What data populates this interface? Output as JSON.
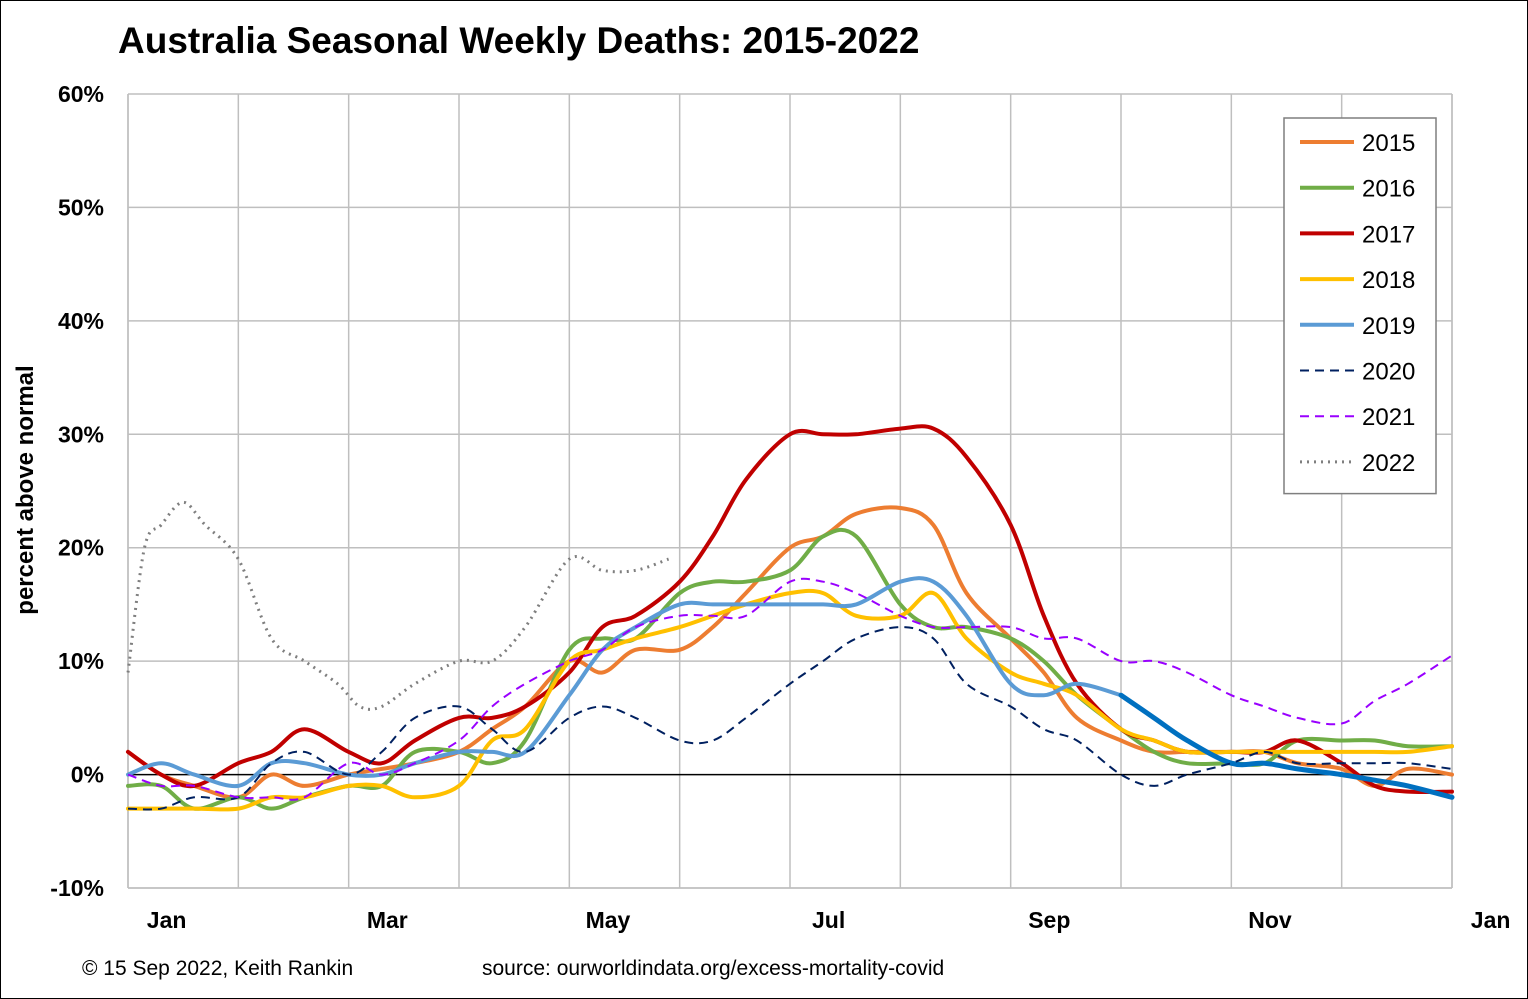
{
  "footer": {
    "copyright": "© 15 Sep 2022, Keith Rankin",
    "source": "source: ourworldindata.org/excess-mortality-covid"
  },
  "chart_data": {
    "type": "line",
    "title": "Australia Seasonal Weekly Deaths: 2015-2022",
    "xlabel": "",
    "ylabel": "percent above normal",
    "x_unit": "month",
    "xlim": [
      1,
      13
    ],
    "ylim": [
      -10,
      60
    ],
    "yticks": [
      -10,
      0,
      10,
      20,
      30,
      40,
      50,
      60
    ],
    "ytick_labels": [
      "-10%",
      "0%",
      "10%",
      "20%",
      "30%",
      "40%",
      "50%",
      "60%"
    ],
    "xtick_labels": [
      {
        "x": 1.35,
        "label": "Jan"
      },
      {
        "x": 3.35,
        "label": "Mar"
      },
      {
        "x": 5.35,
        "label": "May"
      },
      {
        "x": 7.35,
        "label": "Jul"
      },
      {
        "x": 9.35,
        "label": "Sep"
      },
      {
        "x": 11.35,
        "label": "Nov"
      },
      {
        "x": 13.35,
        "label": "Jan"
      }
    ],
    "grid": true,
    "legend_position": "top-right",
    "series": [
      {
        "name": "2015",
        "color": "#ED7D31",
        "dash": "solid",
        "width": 4,
        "x": [
          1.0,
          1.3,
          1.6,
          2.0,
          2.3,
          2.6,
          3.0,
          3.3,
          3.6,
          4.0,
          4.3,
          4.6,
          5.0,
          5.3,
          5.6,
          6.0,
          6.3,
          6.6,
          7.0,
          7.3,
          7.6,
          8.0,
          8.3,
          8.6,
          9.0,
          9.3,
          9.6,
          10.0,
          10.3,
          10.6,
          11.0,
          11.3,
          11.6,
          12.0,
          12.3,
          12.6,
          13.0
        ],
        "y": [
          2,
          0,
          -1,
          -2,
          0,
          -1,
          0,
          0.5,
          1,
          2,
          4,
          6,
          10,
          9,
          11,
          11,
          13,
          16,
          20,
          21,
          23,
          23.5,
          22,
          16,
          12,
          9,
          5,
          3,
          2,
          2,
          2,
          2,
          1,
          0.5,
          -1,
          0.5,
          0
        ]
      },
      {
        "name": "2016",
        "color": "#70AD47",
        "dash": "solid",
        "width": 4,
        "x": [
          1.0,
          1.3,
          1.6,
          2.0,
          2.3,
          2.6,
          3.0,
          3.3,
          3.6,
          4.0,
          4.3,
          4.6,
          5.0,
          5.3,
          5.6,
          6.0,
          6.3,
          6.6,
          7.0,
          7.3,
          7.6,
          8.0,
          8.3,
          8.6,
          9.0,
          9.3,
          9.6,
          10.0,
          10.3,
          10.6,
          11.0,
          11.3,
          11.6,
          12.0,
          12.3,
          12.6,
          13.0
        ],
        "y": [
          -1,
          -1,
          -3,
          -2,
          -3,
          -2,
          -1,
          -1,
          2,
          2,
          1,
          3,
          11,
          12,
          12,
          16,
          17,
          17,
          18,
          21,
          21,
          15,
          13,
          13,
          12,
          10,
          7,
          4,
          2,
          1,
          1,
          1,
          3,
          3,
          3,
          2.5,
          2.5
        ]
      },
      {
        "name": "2017",
        "color": "#C00000",
        "dash": "solid",
        "width": 4,
        "x": [
          1.0,
          1.3,
          1.6,
          2.0,
          2.3,
          2.6,
          3.0,
          3.3,
          3.6,
          4.0,
          4.3,
          4.6,
          5.0,
          5.3,
          5.6,
          6.0,
          6.3,
          6.6,
          7.0,
          7.3,
          7.6,
          8.0,
          8.3,
          8.6,
          9.0,
          9.3,
          9.6,
          10.0,
          10.3,
          10.6,
          11.0,
          11.3,
          11.6,
          12.0,
          12.3,
          12.6,
          13.0
        ],
        "y": [
          2,
          0,
          -1,
          1,
          2,
          4,
          2,
          1,
          3,
          5,
          5,
          6,
          9,
          13,
          14,
          17,
          21,
          26,
          30,
          30,
          30,
          30.5,
          30.5,
          28,
          22,
          14,
          8,
          4,
          3,
          2,
          2,
          2,
          3,
          1,
          -1,
          -1.5,
          -1.5
        ]
      },
      {
        "name": "2018",
        "color": "#FFC000",
        "dash": "solid",
        "width": 4,
        "x": [
          1.0,
          1.3,
          1.6,
          2.0,
          2.3,
          2.6,
          3.0,
          3.3,
          3.6,
          4.0,
          4.3,
          4.6,
          5.0,
          5.3,
          5.6,
          6.0,
          6.3,
          6.6,
          7.0,
          7.3,
          7.6,
          8.0,
          8.3,
          8.6,
          9.0,
          9.3,
          9.6,
          10.0,
          10.3,
          10.6,
          11.0,
          11.3,
          11.6,
          12.0,
          12.3,
          12.6,
          13.0
        ],
        "y": [
          -3,
          -3,
          -3,
          -3,
          -2,
          -2,
          -1,
          -1,
          -2,
          -1,
          3,
          4,
          10,
          11,
          12,
          13,
          14,
          15,
          16,
          16,
          14,
          14,
          16,
          12,
          9,
          8,
          7,
          4,
          3,
          2,
          2,
          2,
          2,
          2,
          2,
          2,
          2.5
        ]
      },
      {
        "name": "2019",
        "color": "#5B9BD5",
        "dash": "solid",
        "width": 4,
        "x": [
          1.0,
          1.3,
          1.6,
          2.0,
          2.3,
          2.6,
          3.0,
          3.3,
          3.6,
          4.0,
          4.3,
          4.6,
          5.0,
          5.3,
          5.6,
          6.0,
          6.3,
          6.6,
          7.0,
          7.3,
          7.6,
          8.0,
          8.3,
          8.6,
          9.0,
          9.3,
          9.6,
          10.0
        ],
        "y": [
          0,
          1,
          0,
          -1,
          1,
          1,
          0,
          0,
          1,
          2,
          2,
          2,
          7,
          11,
          13,
          15,
          15,
          15,
          15,
          15,
          15,
          17,
          17,
          14,
          8,
          7,
          8,
          7
        ]
      },
      {
        "name": "2019",
        "color": "#0070C0",
        "dash": "solid",
        "width": 5,
        "legend": false,
        "x": [
          10.0,
          10.3,
          10.6,
          11.0,
          11.3,
          11.6,
          12.0,
          12.3,
          12.6,
          13.0
        ],
        "y": [
          7,
          5,
          3,
          1,
          1,
          0.5,
          0,
          -0.5,
          -1,
          -2
        ]
      },
      {
        "name": "2020",
        "color": "#002060",
        "dash": "dashed",
        "width": 2,
        "x": [
          1.0,
          1.3,
          1.6,
          2.0,
          2.3,
          2.6,
          3.0,
          3.3,
          3.6,
          4.0,
          4.3,
          4.6,
          5.0,
          5.3,
          5.6,
          6.0,
          6.3,
          6.6,
          7.0,
          7.3,
          7.6,
          8.0,
          8.3,
          8.6,
          9.0,
          9.3,
          9.6,
          10.0,
          10.3,
          10.6,
          11.0,
          11.3,
          11.6,
          12.0,
          12.3,
          12.6,
          13.0
        ],
        "y": [
          -3,
          -3,
          -2,
          -2,
          1,
          2,
          0,
          2,
          5,
          6,
          4,
          2,
          5,
          6,
          5,
          3,
          3,
          5,
          8,
          10,
          12,
          13,
          12,
          8,
          6,
          4,
          3,
          0,
          -1,
          0,
          1,
          2,
          1,
          1,
          1,
          1,
          0.5
        ]
      },
      {
        "name": "2021",
        "color": "#9900FF",
        "dash": "dashed",
        "width": 2,
        "x": [
          1.0,
          1.3,
          1.6,
          2.0,
          2.3,
          2.6,
          3.0,
          3.3,
          3.6,
          4.0,
          4.3,
          4.6,
          5.0,
          5.3,
          5.6,
          6.0,
          6.3,
          6.6,
          7.0,
          7.3,
          7.6,
          8.0,
          8.3,
          8.6,
          9.0,
          9.3,
          9.6,
          10.0,
          10.3,
          10.6,
          11.0,
          11.3,
          11.6,
          12.0,
          12.3,
          12.6,
          13.0
        ],
        "y": [
          0,
          -1,
          -1,
          -2,
          -2,
          -2,
          1,
          0,
          1,
          3,
          6,
          8,
          10,
          11,
          13,
          14,
          14,
          14,
          17,
          17,
          16,
          14,
          13,
          13,
          13,
          12,
          12,
          10,
          10,
          9,
          7,
          6,
          5,
          4.5,
          6.5,
          8,
          10.5
        ]
      },
      {
        "name": "2022",
        "color": "#7F7F7F",
        "dash": "dotted",
        "width": 3,
        "x": [
          1.0,
          1.15,
          1.3,
          1.5,
          1.7,
          2.0,
          2.3,
          2.6,
          2.9,
          3.1,
          3.3,
          3.6,
          4.0,
          4.3,
          4.6,
          5.0,
          5.3,
          5.6,
          5.9
        ],
        "y": [
          9,
          20,
          22,
          24,
          22,
          19,
          12,
          10,
          8,
          6,
          6,
          8,
          10,
          10,
          13,
          19,
          18,
          18,
          19
        ]
      }
    ]
  }
}
